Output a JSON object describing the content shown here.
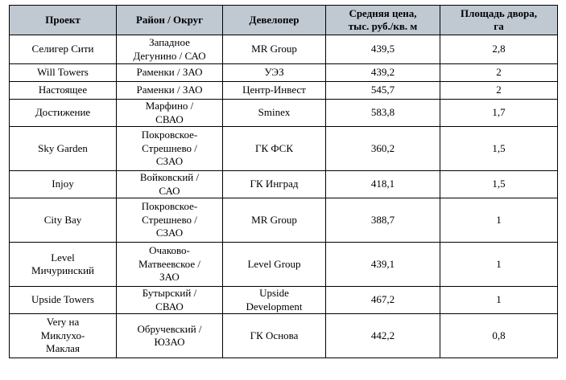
{
  "table": {
    "headers": [
      "Проект",
      "Район / Округ",
      "Девелопер",
      "Средняя цена,\nтыс. руб./кв. м",
      "Площадь двора,\nга"
    ],
    "rows": [
      [
        "Селигер Сити",
        "Западное\nДегунино / САО",
        "MR Group",
        "439,5",
        "2,8"
      ],
      [
        "Will Towers",
        "Раменки / ЗАО",
        "УЭЗ",
        "439,2",
        "2"
      ],
      [
        "Настоящее",
        "Раменки / ЗАО",
        "Центр-Инвест",
        "545,7",
        "2"
      ],
      [
        "Достижение",
        "Марфино /\nСВАО",
        "Sminex",
        "583,8",
        "1,7"
      ],
      [
        "Sky Garden",
        "Покровское-\nСтрешнево /\nСЗАО",
        "ГК ФСК",
        "360,2",
        "1,5"
      ],
      [
        "Injoy",
        "Войковский /\nСАО",
        "ГК Инград",
        "418,1",
        "1,5"
      ],
      [
        "City Bay",
        "Покровское-\nСтрешнево /\nСЗАО",
        "MR Group",
        "388,7",
        "1"
      ],
      [
        "Level\nМичуринский",
        "Очаково-\nМатвеевское /\nЗАО",
        "Level Group",
        "439,1",
        "1"
      ],
      [
        "Upside Towers",
        "Бутырский /\nСВАО",
        "Upside\nDevelopment",
        "467,2",
        "1"
      ],
      [
        "Very на\nМиклухо-\nМаклая",
        "Обручевский /\nЮЗАО",
        "ГК Основа",
        "442,2",
        "0,8"
      ]
    ]
  }
}
